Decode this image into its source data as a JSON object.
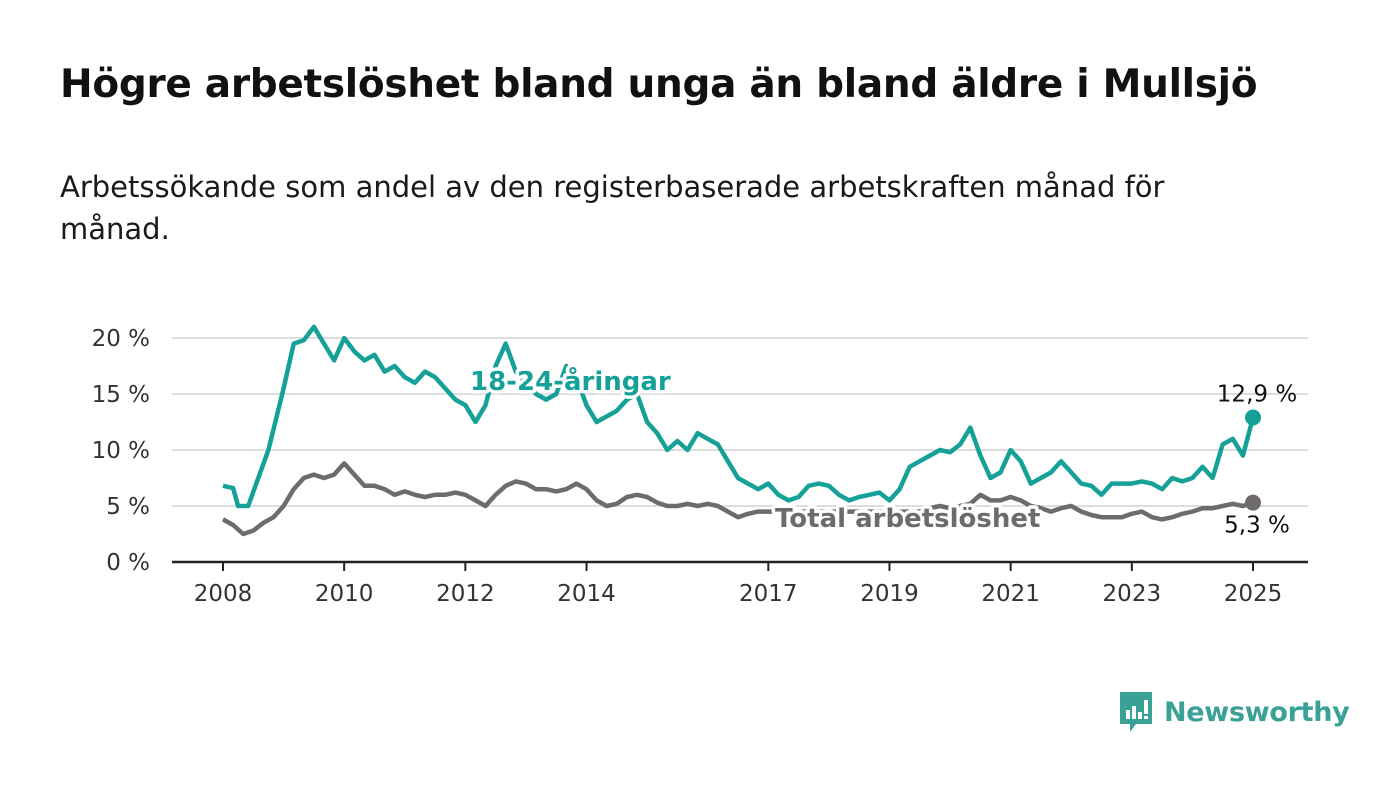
{
  "header": {
    "title": "Högre arbetslöshet bland unga än bland äldre i Mullsjö",
    "subtitle": "Arbetssökande som andel av den registerbaserade arbetskraften månad för månad."
  },
  "brand": {
    "name": "Newsworthy",
    "color": "#3aa197"
  },
  "chart_data": {
    "type": "line",
    "title": "Högre arbetslöshet bland unga än bland äldre i Mullsjö",
    "subtitle": "Arbetssökande som andel av den registerbaserade arbetskraften månad för månad.",
    "ylim": [
      0,
      20
    ],
    "y_ticks": [
      0,
      5,
      10,
      15,
      20
    ],
    "y_tick_labels": [
      "0 %",
      "5 %",
      "10 %",
      "15 %",
      "20 %"
    ],
    "x_range": [
      "2008-01",
      "2025-01"
    ],
    "x_ticks": [
      "2008",
      "2010",
      "2012",
      "2014",
      "2017",
      "2019",
      "2021",
      "2023",
      "2025"
    ],
    "grid": "horizontal",
    "series": [
      {
        "name": "18-24-åringar",
        "color": "#15a197",
        "end_label": "12,9 %",
        "points": [
          [
            "2008-01",
            6.8
          ],
          [
            "2008-03",
            6.6
          ],
          [
            "2008-04",
            5.0
          ],
          [
            "2008-06",
            5.0
          ],
          [
            "2008-08",
            7.5
          ],
          [
            "2008-10",
            10.0
          ],
          [
            "2009-01",
            15.5
          ],
          [
            "2009-03",
            19.5
          ],
          [
            "2009-05",
            19.8
          ],
          [
            "2009-07",
            21.0
          ],
          [
            "2009-09",
            19.5
          ],
          [
            "2009-11",
            18.0
          ],
          [
            "2010-01",
            20.0
          ],
          [
            "2010-03",
            18.8
          ],
          [
            "2010-05",
            18.0
          ],
          [
            "2010-07",
            18.5
          ],
          [
            "2010-09",
            17.0
          ],
          [
            "2010-11",
            17.5
          ],
          [
            "2011-01",
            16.5
          ],
          [
            "2011-03",
            16.0
          ],
          [
            "2011-05",
            17.0
          ],
          [
            "2011-07",
            16.5
          ],
          [
            "2011-09",
            15.5
          ],
          [
            "2011-11",
            14.5
          ],
          [
            "2012-01",
            14.0
          ],
          [
            "2012-03",
            12.5
          ],
          [
            "2012-05",
            14.0
          ],
          [
            "2012-07",
            17.5
          ],
          [
            "2012-09",
            19.5
          ],
          [
            "2012-11",
            17.0
          ],
          [
            "2013-01",
            16.0
          ],
          [
            "2013-03",
            15.0
          ],
          [
            "2013-05",
            14.5
          ],
          [
            "2013-07",
            15.0
          ],
          [
            "2013-09",
            17.5
          ],
          [
            "2013-11",
            16.5
          ],
          [
            "2014-01",
            14.0
          ],
          [
            "2014-03",
            12.5
          ],
          [
            "2014-05",
            13.0
          ],
          [
            "2014-07",
            13.5
          ],
          [
            "2014-09",
            14.5
          ],
          [
            "2014-11",
            15.0
          ],
          [
            "2015-01",
            12.5
          ],
          [
            "2015-03",
            11.5
          ],
          [
            "2015-05",
            10.0
          ],
          [
            "2015-07",
            10.8
          ],
          [
            "2015-09",
            10.0
          ],
          [
            "2015-11",
            11.5
          ],
          [
            "2016-01",
            11.0
          ],
          [
            "2016-03",
            10.5
          ],
          [
            "2016-05",
            9.0
          ],
          [
            "2016-07",
            7.5
          ],
          [
            "2016-09",
            7.0
          ],
          [
            "2016-11",
            6.5
          ],
          [
            "2017-01",
            7.0
          ],
          [
            "2017-03",
            6.0
          ],
          [
            "2017-05",
            5.5
          ],
          [
            "2017-07",
            5.8
          ],
          [
            "2017-09",
            6.8
          ],
          [
            "2017-11",
            7.0
          ],
          [
            "2018-01",
            6.8
          ],
          [
            "2018-03",
            6.0
          ],
          [
            "2018-05",
            5.5
          ],
          [
            "2018-07",
            5.8
          ],
          [
            "2018-09",
            6.0
          ],
          [
            "2018-11",
            6.2
          ],
          [
            "2019-01",
            5.5
          ],
          [
            "2019-03",
            6.5
          ],
          [
            "2019-05",
            8.5
          ],
          [
            "2019-07",
            9.0
          ],
          [
            "2019-09",
            9.5
          ],
          [
            "2019-11",
            10.0
          ],
          [
            "2020-01",
            9.8
          ],
          [
            "2020-03",
            10.5
          ],
          [
            "2020-05",
            12.0
          ],
          [
            "2020-07",
            9.5
          ],
          [
            "2020-09",
            7.5
          ],
          [
            "2020-11",
            8.0
          ],
          [
            "2021-01",
            10.0
          ],
          [
            "2021-03",
            9.0
          ],
          [
            "2021-05",
            7.0
          ],
          [
            "2021-07",
            7.5
          ],
          [
            "2021-09",
            8.0
          ],
          [
            "2021-11",
            9.0
          ],
          [
            "2022-01",
            8.0
          ],
          [
            "2022-03",
            7.0
          ],
          [
            "2022-05",
            6.8
          ],
          [
            "2022-07",
            6.0
          ],
          [
            "2022-09",
            7.0
          ],
          [
            "2022-11",
            7.0
          ],
          [
            "2023-01",
            7.0
          ],
          [
            "2023-03",
            7.2
          ],
          [
            "2023-05",
            7.0
          ],
          [
            "2023-07",
            6.5
          ],
          [
            "2023-09",
            7.5
          ],
          [
            "2023-11",
            7.2
          ],
          [
            "2024-01",
            7.5
          ],
          [
            "2024-03",
            8.5
          ],
          [
            "2024-05",
            7.5
          ],
          [
            "2024-07",
            10.5
          ],
          [
            "2024-09",
            11.0
          ],
          [
            "2024-11",
            9.5
          ],
          [
            "2025-01",
            12.9
          ]
        ]
      },
      {
        "name": "Total arbetslöshet",
        "color": "#6e6a6e",
        "end_label": "5,3 %",
        "points": [
          [
            "2008-01",
            3.8
          ],
          [
            "2008-03",
            3.3
          ],
          [
            "2008-05",
            2.5
          ],
          [
            "2008-07",
            2.8
          ],
          [
            "2008-09",
            3.5
          ],
          [
            "2008-11",
            4.0
          ],
          [
            "2009-01",
            5.0
          ],
          [
            "2009-03",
            6.5
          ],
          [
            "2009-05",
            7.5
          ],
          [
            "2009-07",
            7.8
          ],
          [
            "2009-09",
            7.5
          ],
          [
            "2009-11",
            7.8
          ],
          [
            "2010-01",
            8.8
          ],
          [
            "2010-03",
            7.8
          ],
          [
            "2010-05",
            6.8
          ],
          [
            "2010-07",
            6.8
          ],
          [
            "2010-09",
            6.5
          ],
          [
            "2010-11",
            6.0
          ],
          [
            "2011-01",
            6.3
          ],
          [
            "2011-03",
            6.0
          ],
          [
            "2011-05",
            5.8
          ],
          [
            "2011-07",
            6.0
          ],
          [
            "2011-09",
            6.0
          ],
          [
            "2011-11",
            6.2
          ],
          [
            "2012-01",
            6.0
          ],
          [
            "2012-03",
            5.5
          ],
          [
            "2012-05",
            5.0
          ],
          [
            "2012-07",
            6.0
          ],
          [
            "2012-09",
            6.8
          ],
          [
            "2012-11",
            7.2
          ],
          [
            "2013-01",
            7.0
          ],
          [
            "2013-03",
            6.5
          ],
          [
            "2013-05",
            6.5
          ],
          [
            "2013-07",
            6.3
          ],
          [
            "2013-09",
            6.5
          ],
          [
            "2013-11",
            7.0
          ],
          [
            "2014-01",
            6.5
          ],
          [
            "2014-03",
            5.5
          ],
          [
            "2014-05",
            5.0
          ],
          [
            "2014-07",
            5.2
          ],
          [
            "2014-09",
            5.8
          ],
          [
            "2014-11",
            6.0
          ],
          [
            "2015-01",
            5.8
          ],
          [
            "2015-03",
            5.3
          ],
          [
            "2015-05",
            5.0
          ],
          [
            "2015-07",
            5.0
          ],
          [
            "2015-09",
            5.2
          ],
          [
            "2015-11",
            5.0
          ],
          [
            "2016-01",
            5.2
          ],
          [
            "2016-03",
            5.0
          ],
          [
            "2016-05",
            4.5
          ],
          [
            "2016-07",
            4.0
          ],
          [
            "2016-09",
            4.3
          ],
          [
            "2016-11",
            4.5
          ],
          [
            "2017-01",
            4.5
          ],
          [
            "2017-03",
            4.5
          ],
          [
            "2017-05",
            4.5
          ],
          [
            "2017-07",
            4.5
          ],
          [
            "2017-09",
            4.5
          ],
          [
            "2017-11",
            4.5
          ],
          [
            "2018-01",
            4.5
          ],
          [
            "2018-03",
            4.5
          ],
          [
            "2018-05",
            4.5
          ],
          [
            "2018-07",
            4.5
          ],
          [
            "2018-09",
            4.5
          ],
          [
            "2018-11",
            4.5
          ],
          [
            "2019-01",
            4.5
          ],
          [
            "2019-03",
            4.5
          ],
          [
            "2019-05",
            4.5
          ],
          [
            "2019-07",
            4.5
          ],
          [
            "2019-09",
            4.8
          ],
          [
            "2019-11",
            5.0
          ],
          [
            "2020-01",
            4.8
          ],
          [
            "2020-03",
            5.0
          ],
          [
            "2020-05",
            5.2
          ],
          [
            "2020-07",
            6.0
          ],
          [
            "2020-09",
            5.5
          ],
          [
            "2020-11",
            5.5
          ],
          [
            "2021-01",
            5.8
          ],
          [
            "2021-03",
            5.5
          ],
          [
            "2021-05",
            5.0
          ],
          [
            "2021-07",
            4.8
          ],
          [
            "2021-09",
            4.5
          ],
          [
            "2021-11",
            4.8
          ],
          [
            "2022-01",
            5.0
          ],
          [
            "2022-03",
            4.5
          ],
          [
            "2022-05",
            4.2
          ],
          [
            "2022-07",
            4.0
          ],
          [
            "2022-09",
            4.0
          ],
          [
            "2022-11",
            4.0
          ],
          [
            "2023-01",
            4.3
          ],
          [
            "2023-03",
            4.5
          ],
          [
            "2023-05",
            4.0
          ],
          [
            "2023-07",
            3.8
          ],
          [
            "2023-09",
            4.0
          ],
          [
            "2023-11",
            4.3
          ],
          [
            "2024-01",
            4.5
          ],
          [
            "2024-03",
            4.8
          ],
          [
            "2024-05",
            4.8
          ],
          [
            "2024-07",
            5.0
          ],
          [
            "2024-09",
            5.2
          ],
          [
            "2024-11",
            5.0
          ],
          [
            "2025-01",
            5.3
          ]
        ]
      }
    ]
  }
}
